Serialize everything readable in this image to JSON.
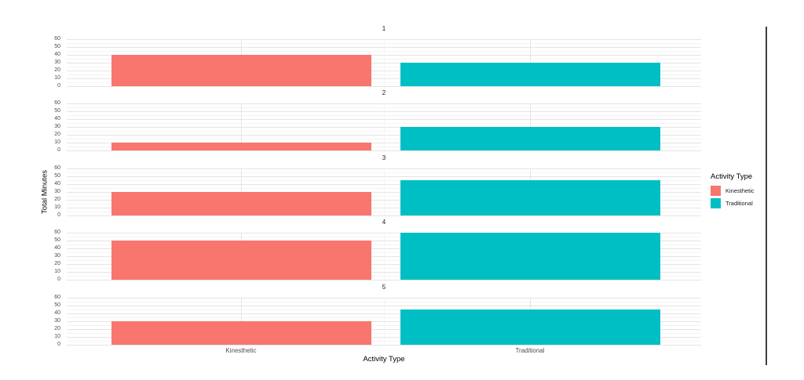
{
  "chart_data": {
    "type": "bar",
    "title": "",
    "xlabel": "Activity Type",
    "ylabel": "Total Minutes",
    "categories": [
      "Kinesthetic",
      "Traditional"
    ],
    "facets": [
      {
        "label": "1",
        "values": [
          40,
          30
        ]
      },
      {
        "label": "2",
        "values": [
          10,
          30
        ]
      },
      {
        "label": "3",
        "values": [
          30,
          45
        ]
      },
      {
        "label": "4",
        "values": [
          50,
          60
        ]
      },
      {
        "label": "5",
        "values": [
          30,
          45
        ]
      }
    ],
    "ylim": [
      0,
      60
    ],
    "y_ticks": [
      0,
      10,
      20,
      30,
      40,
      50,
      60
    ],
    "grid": "on",
    "legend": {
      "title": "Activity Type",
      "position": "right",
      "entries": [
        {
          "label": "Kinesthetic",
          "color": "#F8766D"
        },
        {
          "label": "Traditional",
          "color": "#00BFC4"
        }
      ]
    },
    "colors": {
      "kinesthetic": "#F8766D",
      "traditional": "#00BFC4",
      "gridline_major": "#e4e4e4",
      "gridline_minor": "#f4f4f4",
      "divider_line": "#3f3f3f"
    }
  }
}
